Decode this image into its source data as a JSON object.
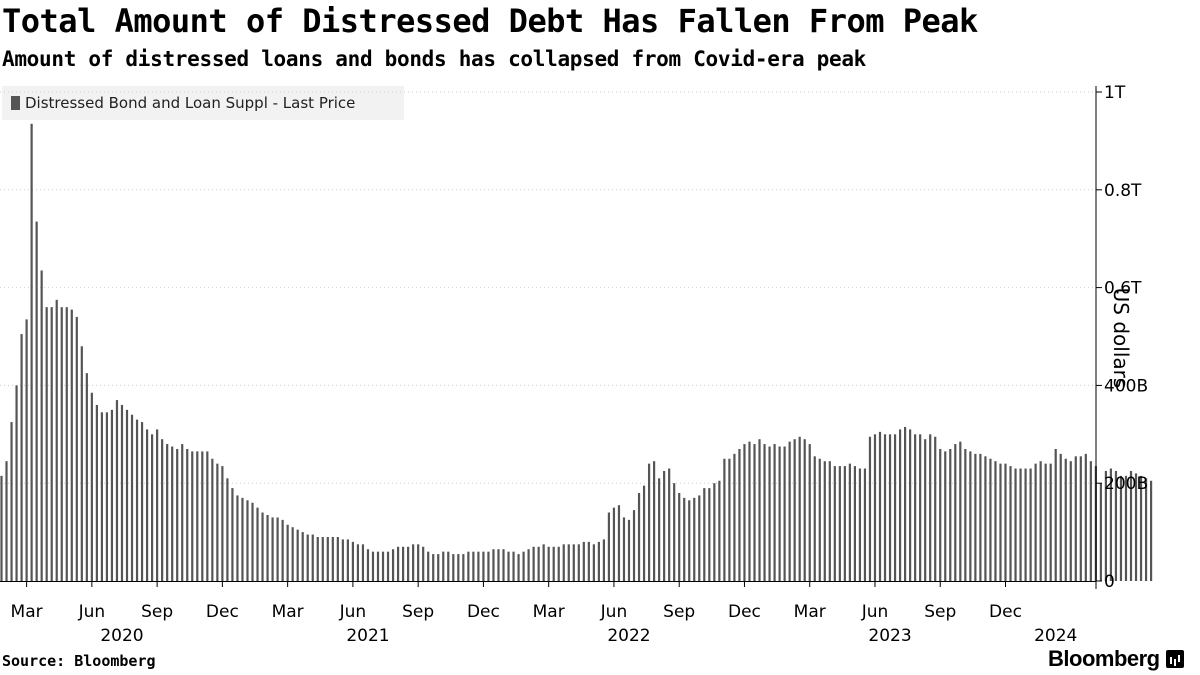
{
  "title": "Total Amount of Distressed Debt Has Fallen From Peak",
  "subtitle": "Amount of distressed loans and bonds has collapsed from Covid-era peak",
  "source": "Source: Bloomberg",
  "brand": "Bloomberg",
  "colors": {
    "bar": "#555555",
    "axis": "#000000",
    "grid": "#cccccc",
    "legend_bg": "#f2f2f2"
  },
  "chart_data": {
    "type": "bar",
    "title": "Total Amount of Distressed Debt Has Fallen From Peak",
    "legend": [
      "Distressed Bond and Loan Suppl - Last Price"
    ],
    "ylabel": "US dollars",
    "unit": "billions of USD",
    "ylim": [
      0,
      1000
    ],
    "yticks": [
      {
        "value": 0,
        "label": "0"
      },
      {
        "value": 200,
        "label": "200B"
      },
      {
        "value": 400,
        "label": "400B"
      },
      {
        "value": 600,
        "label": "0.6T"
      },
      {
        "value": 800,
        "label": "0.8T"
      },
      {
        "value": 1000,
        "label": "1T"
      }
    ],
    "xticks": [
      {
        "index": 5,
        "label": "Mar"
      },
      {
        "index": 18,
        "label": "Jun"
      },
      {
        "index": 31,
        "label": "Sep"
      },
      {
        "index": 44,
        "label": "Dec"
      },
      {
        "index": 57,
        "label": "Mar"
      },
      {
        "index": 70,
        "label": "Jun"
      },
      {
        "index": 83,
        "label": "Sep"
      },
      {
        "index": 96,
        "label": "Dec"
      },
      {
        "index": 109,
        "label": "Mar"
      },
      {
        "index": 122,
        "label": "Jun"
      },
      {
        "index": 135,
        "label": "Sep"
      },
      {
        "index": 148,
        "label": "Dec"
      },
      {
        "index": 161,
        "label": "Mar"
      },
      {
        "index": 174,
        "label": "Jun"
      },
      {
        "index": 187,
        "label": "Sep"
      },
      {
        "index": 200,
        "label": "Dec"
      }
    ],
    "years": [
      {
        "index": 24,
        "label": "2020"
      },
      {
        "index": 73,
        "label": "2021"
      },
      {
        "index": 125,
        "label": "2022"
      },
      {
        "index": 177,
        "label": "2023"
      },
      {
        "index": 210,
        "label": "2024"
      }
    ],
    "values": [
      215,
      245,
      325,
      400,
      505,
      535,
      935,
      735,
      635,
      560,
      560,
      575,
      560,
      560,
      555,
      540,
      480,
      425,
      385,
      360,
      345,
      345,
      350,
      370,
      360,
      350,
      340,
      330,
      325,
      310,
      300,
      310,
      290,
      280,
      275,
      270,
      280,
      270,
      265,
      265,
      265,
      265,
      250,
      240,
      235,
      210,
      190,
      175,
      170,
      165,
      160,
      150,
      140,
      135,
      130,
      130,
      125,
      115,
      110,
      105,
      100,
      95,
      95,
      90,
      90,
      90,
      90,
      90,
      85,
      85,
      80,
      75,
      75,
      65,
      60,
      60,
      60,
      60,
      65,
      70,
      70,
      70,
      75,
      75,
      70,
      60,
      55,
      55,
      60,
      60,
      55,
      55,
      55,
      60,
      60,
      60,
      60,
      60,
      65,
      65,
      65,
      60,
      60,
      55,
      60,
      65,
      70,
      70,
      75,
      70,
      70,
      70,
      75,
      75,
      75,
      75,
      80,
      80,
      75,
      80,
      85,
      140,
      150,
      155,
      130,
      125,
      145,
      180,
      195,
      240,
      245,
      210,
      225,
      230,
      200,
      180,
      170,
      165,
      170,
      175,
      190,
      190,
      200,
      205,
      250,
      250,
      260,
      270,
      280,
      285,
      280,
      290,
      280,
      275,
      280,
      275,
      275,
      285,
      290,
      295,
      290,
      280,
      255,
      250,
      245,
      245,
      235,
      235,
      235,
      240,
      235,
      230,
      230,
      295,
      300,
      305,
      300,
      300,
      300,
      310,
      315,
      310,
      300,
      300,
      290,
      300,
      295,
      270,
      265,
      270,
      280,
      285,
      270,
      265,
      260,
      260,
      255,
      250,
      245,
      240,
      240,
      235,
      230,
      230,
      230,
      230,
      240,
      245,
      240,
      240,
      270,
      260,
      250,
      245,
      255,
      255,
      260,
      245,
      235,
      200,
      225,
      230,
      225,
      215,
      215,
      225,
      220,
      215,
      210,
      205
    ]
  }
}
